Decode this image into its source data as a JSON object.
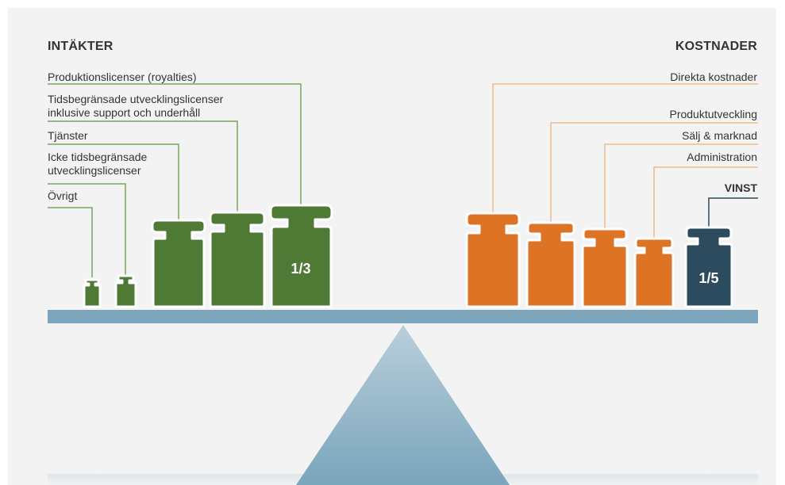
{
  "colors": {
    "revenue": "#4e7a35",
    "cost": "#dd7324",
    "profit": "#2c4b5e",
    "beam": "#7da6bd",
    "revenue_line": "#7aa65a",
    "cost_line": "#eeb98d",
    "profit_line": "#2c4b5e"
  },
  "revenue": {
    "heading": "INTÄKTER",
    "items": [
      {
        "label": "Produktionslicenser (royalties)"
      },
      {
        "label_line1": "Tidsbegränsade utvecklingslicenser",
        "label_line2": "inklusive support och underhåll"
      },
      {
        "label": "Tjänster"
      },
      {
        "label_line1": "Icke tidsbegränsade",
        "label_line2": "utvecklingslicenser"
      },
      {
        "label": "Övrigt"
      }
    ],
    "share_label": "1/3"
  },
  "costs": {
    "heading": "KOSTNADER",
    "items": [
      {
        "label": "Direkta kostnader"
      },
      {
        "label": "Produktutveckling"
      },
      {
        "label": "Sälj & marknad"
      },
      {
        "label": "Administration"
      }
    ],
    "profit_label": "VINST",
    "profit_share_label": "1/5"
  }
}
